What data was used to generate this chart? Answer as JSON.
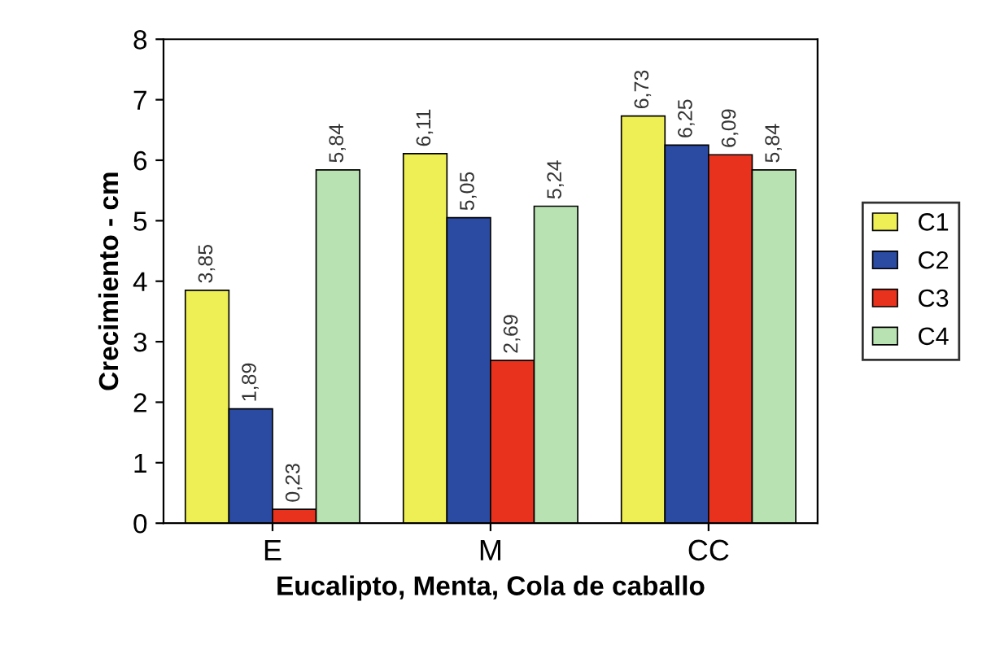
{
  "chart_data": {
    "type": "bar",
    "xlabel": "Eucalipto, Menta, Cola de caballo",
    "ylabel": "Crecimiento - cm",
    "categories": [
      "E",
      "M",
      "CC"
    ],
    "series": [
      {
        "name": "C1",
        "color": "#eeee55",
        "values": [
          3.85,
          6.11,
          6.73
        ],
        "value_labels": [
          "3,85",
          "6,11",
          "6,73"
        ]
      },
      {
        "name": "C2",
        "color": "#2b4ba3",
        "values": [
          1.89,
          5.05,
          6.25
        ],
        "value_labels": [
          "1,89",
          "5,05",
          "6,25"
        ]
      },
      {
        "name": "C3",
        "color": "#e8321e",
        "values": [
          0.23,
          2.69,
          6.09
        ],
        "value_labels": [
          "0,23",
          "2,69",
          "6,09"
        ]
      },
      {
        "name": "C4",
        "color": "#b9e2b2",
        "values": [
          5.84,
          5.24,
          5.84
        ],
        "value_labels": [
          "5,84",
          "5,24",
          "5,84"
        ]
      }
    ],
    "ylim": [
      0,
      8
    ],
    "yticks": [
      0,
      1,
      2,
      3,
      4,
      5,
      6,
      7,
      8
    ],
    "grid": false,
    "legend": "right"
  }
}
